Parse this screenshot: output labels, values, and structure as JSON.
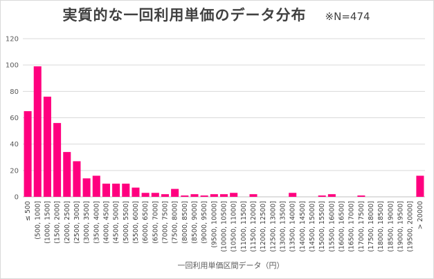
{
  "chart_data": {
    "type": "bar",
    "title": "実質的な一回利用単価のデータ分布",
    "subtitle": "※N=474",
    "xlabel": "一回利用単価区間データ（円）",
    "ylabel": "",
    "ylim": [
      0,
      120
    ],
    "yticks": [
      0,
      20,
      40,
      60,
      80,
      100,
      120
    ],
    "grid": true,
    "legend": "none",
    "bar_color": "#ff007f",
    "categories": [
      "≤ 500",
      "(500, 1000]",
      "(1000, 1500]",
      "(1500, 2000]",
      "(2000, 2500]",
      "(2500, 3000]",
      "(3000, 3500]",
      "(3500, 4000]",
      "(4000, 4500]",
      "(4500, 5000]",
      "(5000, 5500]",
      "(5500, 6000]",
      "(6000, 6500]",
      "(6500, 7000]",
      "(7000, 7500]",
      "(7500, 8000]",
      "(8000, 8500]",
      "(8500, 9000]",
      "(9000, 9500]",
      "(9500, 10000]",
      "(10000, 10500]",
      "(10500, 11000]",
      "(11000, 11500]",
      "(11500, 12000]",
      "(12000, 12500]",
      "(12500, 13000]",
      "(13000, 13500]",
      "(13500, 14000]",
      "(14000, 14500]",
      "(14500, 15000]",
      "(15000, 15500]",
      "(15500, 16000]",
      "(16000, 16500]",
      "(16500, 17000]",
      "(17000, 17500]",
      "(17500, 18000]",
      "(18000, 18500]",
      "(18500, 19000]",
      "(19000, 19500]",
      "(19500, 20000]",
      "> 20000"
    ],
    "values": [
      65,
      99,
      76,
      56,
      34,
      27,
      14,
      16,
      10,
      10,
      10,
      7,
      3,
      3,
      2,
      6,
      1,
      2,
      1,
      2,
      2,
      3,
      0,
      2,
      0,
      0,
      0,
      3,
      0,
      0,
      1,
      2,
      0,
      0,
      1,
      0,
      0,
      0,
      0,
      0,
      16
    ]
  }
}
